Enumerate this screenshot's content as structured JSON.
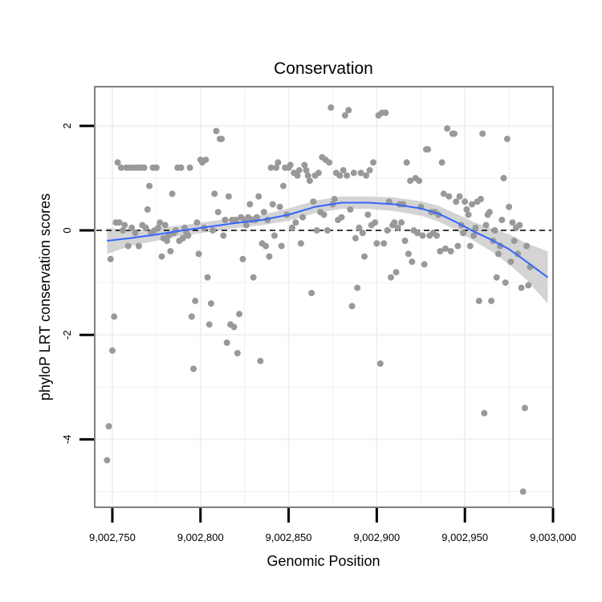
{
  "chart_data": {
    "type": "scatter",
    "title": "Conservation",
    "xlabel": "Genomic Position",
    "ylabel": "phyloP LRT conservation scores",
    "xlim": [
      9002740,
      9003000
    ],
    "ylim": [
      -5.3,
      2.75
    ],
    "x_ticks": [
      9002750,
      9002800,
      9002850,
      9002900,
      9002950,
      9003000
    ],
    "x_tick_labels": [
      "9,002,750",
      "9,002,800",
      "9,002,850",
      "9,002,900",
      "9,002,950",
      "9,003,000"
    ],
    "y_ticks": [
      -4,
      -2,
      0,
      2
    ],
    "y_tick_labels": [
      "-4",
      "-2",
      "0",
      "2"
    ],
    "reference_line": {
      "y": 0,
      "style": "dashed"
    },
    "grid": true,
    "colors": {
      "points": "#999999",
      "smooth": "#3366ff",
      "ribbon": "#cccccc",
      "panel_border": "#7f7f7f",
      "grid": "#f0f0f0"
    },
    "points": [
      {
        "x": 9002747,
        "y": -4.4
      },
      {
        "x": 9002748,
        "y": -3.75
      },
      {
        "x": 9002749,
        "y": -0.55
      },
      {
        "x": 9002750,
        "y": -2.3
      },
      {
        "x": 9002751,
        "y": -1.65
      },
      {
        "x": 9002752,
        "y": 0.15
      },
      {
        "x": 9002753,
        "y": 1.3
      },
      {
        "x": 9002754,
        "y": 0.15
      },
      {
        "x": 9002755,
        "y": 1.2
      },
      {
        "x": 9002756,
        "y": 0.0
      },
      {
        "x": 9002757,
        "y": 0.1
      },
      {
        "x": 9002758,
        "y": 1.2
      },
      {
        "x": 9002759,
        "y": -0.3
      },
      {
        "x": 9002760,
        "y": 1.2
      },
      {
        "x": 9002761,
        "y": 0.05
      },
      {
        "x": 9002762,
        "y": 1.2
      },
      {
        "x": 9002763,
        "y": -0.05
      },
      {
        "x": 9002764,
        "y": 1.2
      },
      {
        "x": 9002765,
        "y": -0.3
      },
      {
        "x": 9002766,
        "y": 1.2
      },
      {
        "x": 9002767,
        "y": 0.1
      },
      {
        "x": 9002768,
        "y": 1.2
      },
      {
        "x": 9002769,
        "y": 0.05
      },
      {
        "x": 9002770,
        "y": 0.4
      },
      {
        "x": 9002771,
        "y": 0.85
      },
      {
        "x": 9002772,
        "y": -0.05
      },
      {
        "x": 9002773,
        "y": 1.2
      },
      {
        "x": 9002774,
        "y": 0.0
      },
      {
        "x": 9002775,
        "y": 1.2
      },
      {
        "x": 9002776,
        "y": 0.05
      },
      {
        "x": 9002777,
        "y": 0.15
      },
      {
        "x": 9002778,
        "y": -0.5
      },
      {
        "x": 9002779,
        "y": -0.15
      },
      {
        "x": 9002780,
        "y": 0.1
      },
      {
        "x": 9002781,
        "y": -0.2
      },
      {
        "x": 9002782,
        "y": -0.1
      },
      {
        "x": 9002783,
        "y": -0.4
      },
      {
        "x": 9002784,
        "y": 0.7
      },
      {
        "x": 9002785,
        "y": -0.05
      },
      {
        "x": 9002786,
        "y": 0.0
      },
      {
        "x": 9002787,
        "y": 1.2
      },
      {
        "x": 9002788,
        "y": -0.2
      },
      {
        "x": 9002789,
        "y": 1.2
      },
      {
        "x": 9002790,
        "y": -0.15
      },
      {
        "x": 9002791,
        "y": 0.05
      },
      {
        "x": 9002792,
        "y": -0.05
      },
      {
        "x": 9002793,
        "y": -0.1
      },
      {
        "x": 9002794,
        "y": 1.2
      },
      {
        "x": 9002795,
        "y": -1.65
      },
      {
        "x": 9002796,
        "y": -2.65
      },
      {
        "x": 9002797,
        "y": -1.35
      },
      {
        "x": 9002798,
        "y": 0.15
      },
      {
        "x": 9002799,
        "y": -0.45
      },
      {
        "x": 9002800,
        "y": 1.35
      },
      {
        "x": 9002801,
        "y": 1.3
      },
      {
        "x": 9002802,
        "y": 0.05
      },
      {
        "x": 9002803,
        "y": 1.35
      },
      {
        "x": 9002804,
        "y": -0.9
      },
      {
        "x": 9002805,
        "y": -1.8
      },
      {
        "x": 9002806,
        "y": -1.4
      },
      {
        "x": 9002807,
        "y": 0.0
      },
      {
        "x": 9002808,
        "y": 0.7
      },
      {
        "x": 9002809,
        "y": 1.9
      },
      {
        "x": 9002810,
        "y": 0.35
      },
      {
        "x": 9002811,
        "y": 1.75
      },
      {
        "x": 9002812,
        "y": 1.75
      },
      {
        "x": 9002813,
        "y": -0.1
      },
      {
        "x": 9002814,
        "y": 0.2
      },
      {
        "x": 9002815,
        "y": -2.15
      },
      {
        "x": 9002816,
        "y": 0.65
      },
      {
        "x": 9002817,
        "y": -1.8
      },
      {
        "x": 9002818,
        "y": 0.2
      },
      {
        "x": 9002819,
        "y": -1.85
      },
      {
        "x": 9002820,
        "y": 0.2
      },
      {
        "x": 9002821,
        "y": -2.35
      },
      {
        "x": 9002822,
        "y": -1.6
      },
      {
        "x": 9002823,
        "y": 0.25
      },
      {
        "x": 9002824,
        "y": -0.55
      },
      {
        "x": 9002825,
        "y": 0.2
      },
      {
        "x": 9002826,
        "y": 0.1
      },
      {
        "x": 9002827,
        "y": 0.25
      },
      {
        "x": 9002828,
        "y": 0.5
      },
      {
        "x": 9002829,
        "y": 0.2
      },
      {
        "x": 9002830,
        "y": -0.9
      },
      {
        "x": 9002831,
        "y": 0.2
      },
      {
        "x": 9002832,
        "y": 0.25
      },
      {
        "x": 9002833,
        "y": 0.65
      },
      {
        "x": 9002834,
        "y": -2.5
      },
      {
        "x": 9002835,
        "y": -0.25
      },
      {
        "x": 9002836,
        "y": 0.35
      },
      {
        "x": 9002837,
        "y": -0.3
      },
      {
        "x": 9002838,
        "y": 0.2
      },
      {
        "x": 9002839,
        "y": -0.5
      },
      {
        "x": 9002840,
        "y": 1.2
      },
      {
        "x": 9002841,
        "y": 0.5
      },
      {
        "x": 9002842,
        "y": -0.1
      },
      {
        "x": 9002843,
        "y": 1.2
      },
      {
        "x": 9002844,
        "y": 1.3
      },
      {
        "x": 9002845,
        "y": 0.45
      },
      {
        "x": 9002846,
        "y": -0.3
      },
      {
        "x": 9002847,
        "y": 0.85
      },
      {
        "x": 9002848,
        "y": 1.2
      },
      {
        "x": 9002849,
        "y": 0.3
      },
      {
        "x": 9002850,
        "y": 1.2
      },
      {
        "x": 9002851,
        "y": 1.25
      },
      {
        "x": 9002852,
        "y": 0.05
      },
      {
        "x": 9002853,
        "y": 1.1
      },
      {
        "x": 9002854,
        "y": 0.15
      },
      {
        "x": 9002855,
        "y": 1.05
      },
      {
        "x": 9002856,
        "y": 1.15
      },
      {
        "x": 9002857,
        "y": -0.25
      },
      {
        "x": 9002858,
        "y": 0.25
      },
      {
        "x": 9002859,
        "y": 1.25
      },
      {
        "x": 9002860,
        "y": 1.15
      },
      {
        "x": 9002861,
        "y": 1.05
      },
      {
        "x": 9002862,
        "y": 0.95
      },
      {
        "x": 9002863,
        "y": -1.2
      },
      {
        "x": 9002864,
        "y": 0.55
      },
      {
        "x": 9002865,
        "y": 1.05
      },
      {
        "x": 9002866,
        "y": 0.0
      },
      {
        "x": 9002867,
        "y": 1.1
      },
      {
        "x": 9002868,
        "y": 0.35
      },
      {
        "x": 9002869,
        "y": 1.4
      },
      {
        "x": 9002870,
        "y": 0.3
      },
      {
        "x": 9002871,
        "y": 1.35
      },
      {
        "x": 9002872,
        "y": 0.0
      },
      {
        "x": 9002873,
        "y": 1.3
      },
      {
        "x": 9002874,
        "y": 2.35
      },
      {
        "x": 9002875,
        "y": 0.5
      },
      {
        "x": 9002876,
        "y": 0.6
      },
      {
        "x": 9002877,
        "y": 1.1
      },
      {
        "x": 9002878,
        "y": 0.2
      },
      {
        "x": 9002879,
        "y": 1.05
      },
      {
        "x": 9002880,
        "y": 0.25
      },
      {
        "x": 9002881,
        "y": 1.15
      },
      {
        "x": 9002882,
        "y": 2.2
      },
      {
        "x": 9002883,
        "y": 1.05
      },
      {
        "x": 9002884,
        "y": 2.3
      },
      {
        "x": 9002885,
        "y": 0.4
      },
      {
        "x": 9002886,
        "y": -1.45
      },
      {
        "x": 9002887,
        "y": 1.1
      },
      {
        "x": 9002888,
        "y": -0.15
      },
      {
        "x": 9002889,
        "y": -1.1
      },
      {
        "x": 9002890,
        "y": 0.05
      },
      {
        "x": 9002891,
        "y": 1.1
      },
      {
        "x": 9002892,
        "y": -0.05
      },
      {
        "x": 9002893,
        "y": -0.5
      },
      {
        "x": 9002894,
        "y": 1.05
      },
      {
        "x": 9002895,
        "y": 0.3
      },
      {
        "x": 9002896,
        "y": 1.15
      },
      {
        "x": 9002897,
        "y": 0.1
      },
      {
        "x": 9002898,
        "y": 1.3
      },
      {
        "x": 9002899,
        "y": 0.15
      },
      {
        "x": 9002900,
        "y": -0.25
      },
      {
        "x": 9002901,
        "y": 2.2
      },
      {
        "x": 9002902,
        "y": -2.55
      },
      {
        "x": 9002903,
        "y": 2.25
      },
      {
        "x": 9002904,
        "y": -0.25
      },
      {
        "x": 9002905,
        "y": 2.25
      },
      {
        "x": 9002906,
        "y": 0.0
      },
      {
        "x": 9002907,
        "y": 0.55
      },
      {
        "x": 9002908,
        "y": -0.9
      },
      {
        "x": 9002909,
        "y": 0.1
      },
      {
        "x": 9002910,
        "y": 0.15
      },
      {
        "x": 9002911,
        "y": -0.8
      },
      {
        "x": 9002912,
        "y": 0.05
      },
      {
        "x": 9002913,
        "y": 0.5
      },
      {
        "x": 9002914,
        "y": 0.15
      },
      {
        "x": 9002915,
        "y": 0.5
      },
      {
        "x": 9002916,
        "y": -0.2
      },
      {
        "x": 9002917,
        "y": 1.3
      },
      {
        "x": 9002918,
        "y": -0.45
      },
      {
        "x": 9002919,
        "y": 0.95
      },
      {
        "x": 9002920,
        "y": -0.6
      },
      {
        "x": 9002921,
        "y": 0.0
      },
      {
        "x": 9002922,
        "y": 1.0
      },
      {
        "x": 9002923,
        "y": -0.05
      },
      {
        "x": 9002924,
        "y": 0.95
      },
      {
        "x": 9002925,
        "y": 0.45
      },
      {
        "x": 9002926,
        "y": -0.1
      },
      {
        "x": 9002927,
        "y": -0.65
      },
      {
        "x": 9002928,
        "y": 1.55
      },
      {
        "x": 9002929,
        "y": 1.55
      },
      {
        "x": 9002930,
        "y": -0.1
      },
      {
        "x": 9002931,
        "y": 0.35
      },
      {
        "x": 9002932,
        "y": -0.05
      },
      {
        "x": 9002933,
        "y": 0.35
      },
      {
        "x": 9002934,
        "y": -0.1
      },
      {
        "x": 9002935,
        "y": 0.3
      },
      {
        "x": 9002936,
        "y": -0.4
      },
      {
        "x": 9002937,
        "y": 1.3
      },
      {
        "x": 9002938,
        "y": 0.7
      },
      {
        "x": 9002939,
        "y": -0.35
      },
      {
        "x": 9002940,
        "y": 1.95
      },
      {
        "x": 9002941,
        "y": 0.65
      },
      {
        "x": 9002942,
        "y": -0.4
      },
      {
        "x": 9002943,
        "y": 1.85
      },
      {
        "x": 9002944,
        "y": 1.85
      },
      {
        "x": 9002945,
        "y": 0.55
      },
      {
        "x": 9002946,
        "y": -0.3
      },
      {
        "x": 9002947,
        "y": 0.65
      },
      {
        "x": 9002948,
        "y": 0.1
      },
      {
        "x": 9002949,
        "y": -0.05
      },
      {
        "x": 9002950,
        "y": 0.55
      },
      {
        "x": 9002951,
        "y": 0.4
      },
      {
        "x": 9002952,
        "y": 0.3
      },
      {
        "x": 9002953,
        "y": -0.3
      },
      {
        "x": 9002954,
        "y": 0.5
      },
      {
        "x": 9002955,
        "y": -0.1
      },
      {
        "x": 9002956,
        "y": 0.05
      },
      {
        "x": 9002957,
        "y": 0.55
      },
      {
        "x": 9002958,
        "y": -1.35
      },
      {
        "x": 9002959,
        "y": 0.6
      },
      {
        "x": 9002960,
        "y": 1.85
      },
      {
        "x": 9002961,
        "y": -3.5
      },
      {
        "x": 9002962,
        "y": 0.1
      },
      {
        "x": 9002963,
        "y": 0.3
      },
      {
        "x": 9002964,
        "y": 0.35
      },
      {
        "x": 9002965,
        "y": -1.35
      },
      {
        "x": 9002966,
        "y": -0.2
      },
      {
        "x": 9002967,
        "y": 0.0
      },
      {
        "x": 9002968,
        "y": -0.9
      },
      {
        "x": 9002969,
        "y": -0.45
      },
      {
        "x": 9002970,
        "y": -0.3
      },
      {
        "x": 9002971,
        "y": 0.2
      },
      {
        "x": 9002972,
        "y": 1.0
      },
      {
        "x": 9002973,
        "y": -1.0
      },
      {
        "x": 9002974,
        "y": 1.75
      },
      {
        "x": 9002975,
        "y": 0.45
      },
      {
        "x": 9002976,
        "y": -0.6
      },
      {
        "x": 9002977,
        "y": 0.15
      },
      {
        "x": 9002978,
        "y": -0.2
      },
      {
        "x": 9002979,
        "y": 0.05
      },
      {
        "x": 9002980,
        "y": -0.45
      },
      {
        "x": 9002981,
        "y": 0.1
      },
      {
        "x": 9002982,
        "y": -1.1
      },
      {
        "x": 9002983,
        "y": -5.0
      },
      {
        "x": 9002984,
        "y": -3.4
      },
      {
        "x": 9002985,
        "y": -0.3
      },
      {
        "x": 9002986,
        "y": -1.05
      },
      {
        "x": 9002987,
        "y": -0.7
      }
    ],
    "smooth": {
      "x": [
        9002747,
        9002760,
        9002775,
        9002790,
        9002805,
        9002820,
        9002835,
        9002850,
        9002865,
        9002880,
        9002895,
        9002910,
        9002925,
        9002935,
        9002945,
        9002955,
        9002965,
        9002975,
        9002985,
        9002997
      ],
      "y": [
        -0.2,
        -0.15,
        -0.08,
        0.0,
        0.07,
        0.14,
        0.2,
        0.3,
        0.45,
        0.53,
        0.53,
        0.5,
        0.42,
        0.32,
        0.16,
        -0.02,
        -0.18,
        -0.36,
        -0.6,
        -0.9
      ],
      "lower": [
        -0.45,
        -0.3,
        -0.2,
        -0.1,
        -0.03,
        0.04,
        0.1,
        0.18,
        0.33,
        0.41,
        0.41,
        0.37,
        0.28,
        0.17,
        0.0,
        -0.2,
        -0.4,
        -0.65,
        -0.95,
        -1.4
      ],
      "upper": [
        0.05,
        0.0,
        0.04,
        0.1,
        0.17,
        0.24,
        0.3,
        0.42,
        0.57,
        0.65,
        0.65,
        0.63,
        0.56,
        0.47,
        0.32,
        0.16,
        0.04,
        -0.07,
        -0.25,
        -0.4
      ]
    }
  }
}
